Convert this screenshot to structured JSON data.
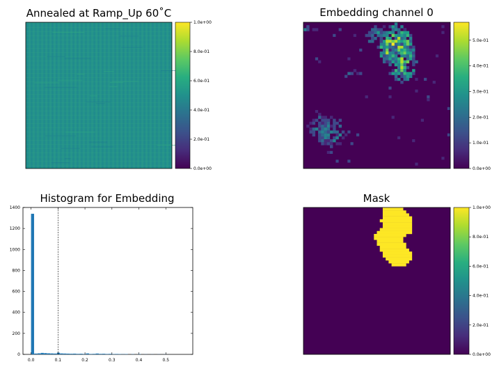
{
  "chart_data": [
    {
      "type": "heatmap",
      "title": "Annealed at Ramp_Up 60$^\\circ$C",
      "title_display": "Annealed at Ramp_Up 60˚C",
      "colormap": "viridis",
      "colorbar": {
        "min": 0.0,
        "max": 1.0,
        "ticks": [
          "0.0e+00",
          "2.0e-01",
          "4.0e-01",
          "6.0e-01",
          "8.0e-01",
          "1.0e+00"
        ]
      },
      "axes_visible": false,
      "description_level": 0.55
    },
    {
      "type": "heatmap",
      "title": "Embedding channel 0",
      "colormap": "viridis",
      "grid": [
        50,
        50
      ],
      "colorbar": {
        "min": 0.0,
        "max": 0.57,
        "ticks": [
          "0.0e+00",
          "1.0e-01",
          "2.0e-01",
          "3.0e-01",
          "4.0e-01",
          "5.0e-01"
        ]
      },
      "axes_visible": false
    },
    {
      "type": "bar",
      "title": "Histogram for Embedding",
      "xlim": [
        -0.03,
        0.6
      ],
      "ylim": [
        0,
        1400
      ],
      "xticks": [
        "0.0",
        "0.1",
        "0.2",
        "0.3",
        "0.4",
        "0.5"
      ],
      "yticks": [
        "0",
        "200",
        "400",
        "600",
        "800",
        "1000",
        "1200",
        "1400"
      ],
      "threshold_line": 0.1,
      "color": "#1f77b4",
      "bins": [
        {
          "x": 0.006,
          "v": 1340
        },
        {
          "x": 0.018,
          "v": 8
        },
        {
          "x": 0.03,
          "v": 10
        },
        {
          "x": 0.042,
          "v": 14
        },
        {
          "x": 0.054,
          "v": 12
        },
        {
          "x": 0.066,
          "v": 10
        },
        {
          "x": 0.078,
          "v": 9
        },
        {
          "x": 0.09,
          "v": 8
        },
        {
          "x": 0.102,
          "v": 16
        },
        {
          "x": 0.114,
          "v": 9
        },
        {
          "x": 0.126,
          "v": 8
        },
        {
          "x": 0.138,
          "v": 7
        },
        {
          "x": 0.15,
          "v": 6
        },
        {
          "x": 0.162,
          "v": 7
        },
        {
          "x": 0.174,
          "v": 5
        },
        {
          "x": 0.186,
          "v": 6
        },
        {
          "x": 0.198,
          "v": 4
        },
        {
          "x": 0.21,
          "v": 9
        },
        {
          "x": 0.222,
          "v": 4
        },
        {
          "x": 0.234,
          "v": 5
        },
        {
          "x": 0.246,
          "v": 8
        },
        {
          "x": 0.258,
          "v": 5
        },
        {
          "x": 0.27,
          "v": 6
        },
        {
          "x": 0.282,
          "v": 4
        },
        {
          "x": 0.294,
          "v": 5
        },
        {
          "x": 0.306,
          "v": 3
        },
        {
          "x": 0.318,
          "v": 4
        },
        {
          "x": 0.33,
          "v": 3
        },
        {
          "x": 0.342,
          "v": 2
        },
        {
          "x": 0.354,
          "v": 3
        },
        {
          "x": 0.378,
          "v": 2
        },
        {
          "x": 0.402,
          "v": 3
        },
        {
          "x": 0.426,
          "v": 1
        },
        {
          "x": 0.45,
          "v": 1
        },
        {
          "x": 0.474,
          "v": 1
        },
        {
          "x": 0.498,
          "v": 1
        }
      ]
    },
    {
      "type": "heatmap",
      "title": "Mask",
      "colormap": "viridis",
      "grid": [
        50,
        50
      ],
      "colorbar": {
        "min": 0.0,
        "max": 1.0,
        "ticks": [
          "0.0e+00",
          "2.0e-01",
          "4.0e-01",
          "6.0e-01",
          "8.0e-01",
          "1.0e+00"
        ]
      },
      "axes_visible": false
    }
  ]
}
